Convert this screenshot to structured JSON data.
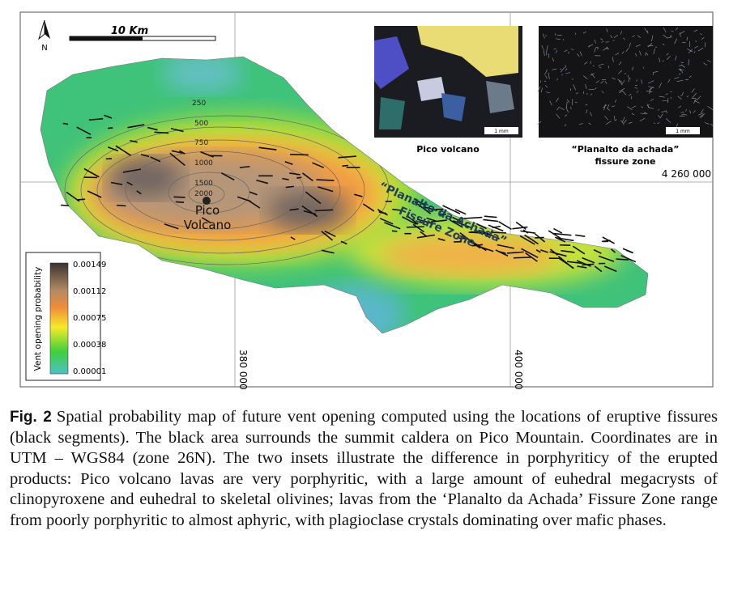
{
  "figure": {
    "north": "N",
    "scale_bar": "10 Km",
    "contours": [
      "250",
      "500",
      "750",
      "1000",
      "1500",
      "2000"
    ],
    "volcano_label": [
      "Pico",
      "Volcano"
    ],
    "fissure_zone_label": [
      "“Planalto da Achada”",
      "Fissure Zone"
    ],
    "coordinates": {
      "northing": "4 260 000",
      "easting_1": "380 000",
      "easting_2": "400 000"
    },
    "legend": {
      "title": "Vent opening probability",
      "ticks": [
        "0.00149",
        "0.00112",
        "0.00075",
        "0.00038",
        "0.00001"
      ]
    },
    "insets": [
      {
        "caption": [
          "Pico volcano"
        ],
        "scale": "1 mm"
      },
      {
        "caption": [
          "“Planalto da achada”",
          "fissure zone"
        ],
        "scale": "1 mm"
      }
    ]
  },
  "caption": {
    "label": "Fig. 2",
    "text": "Spatial probability map of future vent opening computed using the locations of eruptive fissures (black segments). The black area surrounds the summit caldera on Pico Mountain. Coordinates are in UTM – WGS84 (zone 26N). The two insets illustrate the difference in porphyriticy of the erupted products: Pico volcano lavas are very porphyritic, with a large amount of euhedral megacrysts of clinopyroxene and euhedral to skeletal olivines; lavas from the ‘Planalto da Achada’ Fissure Zone range from poorly porphyritic to almost aphyric, with plagioclase crystals dominating over mafic phases."
  }
}
